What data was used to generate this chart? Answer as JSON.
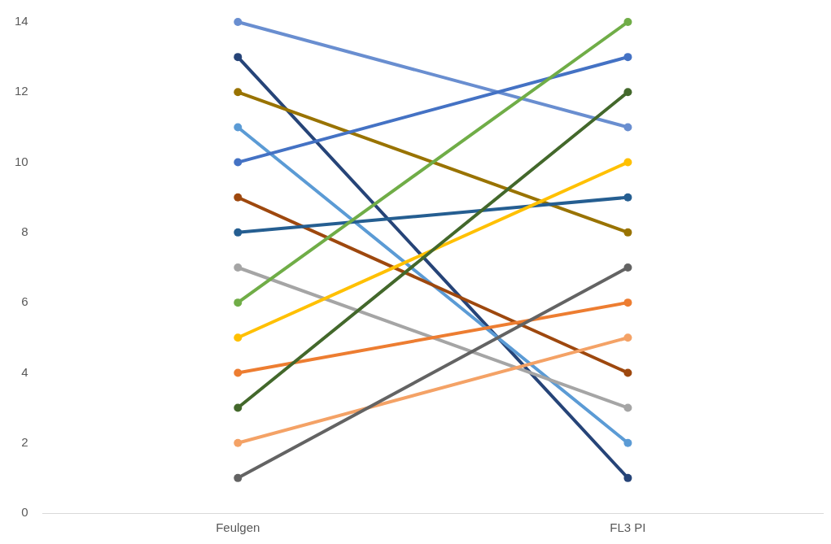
{
  "chart_data": {
    "type": "line",
    "categories": [
      "Feulgen",
      "FL3 PI"
    ],
    "series": [
      {
        "color": "#636363",
        "values": [
          1,
          7
        ]
      },
      {
        "color": "#f4a266",
        "values": [
          2,
          5
        ]
      },
      {
        "color": "#43682b",
        "values": [
          3,
          12
        ]
      },
      {
        "color": "#ed7d31",
        "values": [
          4,
          6
        ]
      },
      {
        "color": "#ffc000",
        "values": [
          5,
          10
        ]
      },
      {
        "color": "#70ad47",
        "values": [
          6,
          14
        ]
      },
      {
        "color": "#a5a5a5",
        "values": [
          7,
          3
        ]
      },
      {
        "color": "#255e91",
        "values": [
          8,
          9
        ]
      },
      {
        "color": "#9e480e",
        "values": [
          9,
          4
        ]
      },
      {
        "color": "#4472c4",
        "values": [
          10,
          13
        ]
      },
      {
        "color": "#5b9bd5",
        "values": [
          11,
          2
        ]
      },
      {
        "color": "#997300",
        "values": [
          12,
          8
        ]
      },
      {
        "color": "#264478",
        "values": [
          13,
          1
        ]
      },
      {
        "color": "#698ed0",
        "values": [
          14,
          11
        ]
      }
    ],
    "ylim": [
      0,
      14
    ],
    "yticks": [
      0,
      2,
      4,
      6,
      8,
      10,
      12,
      14
    ],
    "grid": false,
    "legend": false,
    "marker": "circle",
    "line_style": "solid"
  }
}
